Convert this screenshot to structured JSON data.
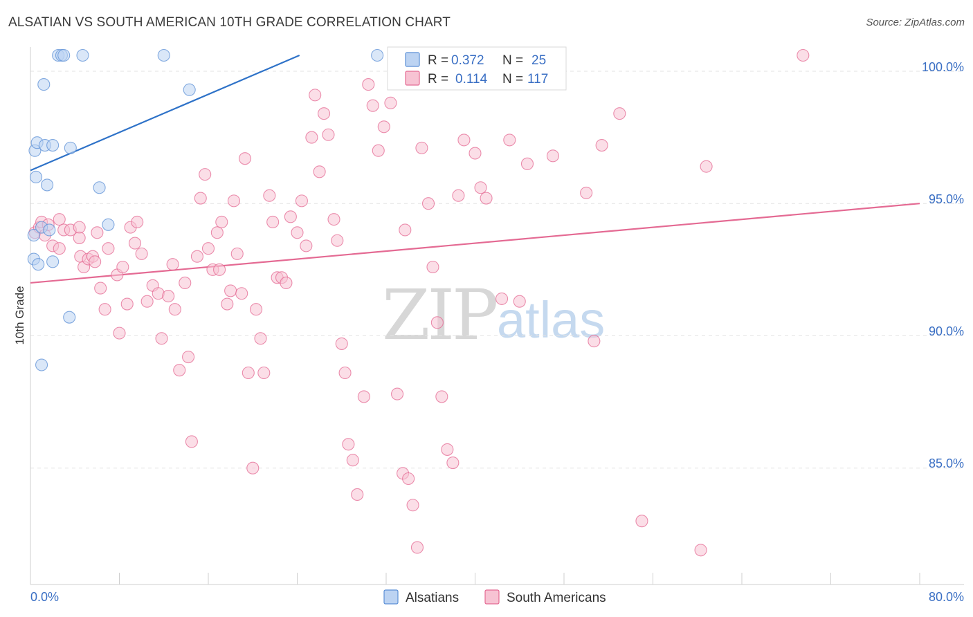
{
  "header": {
    "title": "ALSATIAN VS SOUTH AMERICAN 10TH GRADE CORRELATION CHART",
    "source": "Source: ZipAtlas.com"
  },
  "colors": {
    "alsatians": "#5b8fd6",
    "alsatians_fill": "#bcd3f2",
    "south_americans": "#e46a93",
    "south_americans_fill": "#f7c3d3",
    "axis_text": "#3a6fc4"
  },
  "watermark": {
    "zip": "ZIP",
    "atlas": "atlas"
  },
  "legend": {
    "rows": [
      {
        "r_label": "R =",
        "r_value": "0.372",
        "n_label": "N =",
        "n_value": "25"
      },
      {
        "r_label": "R =",
        "r_value": "0.114",
        "n_label": "N =",
        "n_value": "117"
      }
    ]
  },
  "bottom_legend": {
    "a": "Alsatians",
    "b": "South Americans"
  },
  "chart_data": {
    "type": "scatter",
    "title": "ALSATIAN VS SOUTH AMERICAN 10TH GRADE CORRELATION CHART",
    "xlabel": "",
    "ylabel": "10th Grade",
    "xlim": [
      0,
      80
    ],
    "ylim": [
      80.6,
      100.6
    ],
    "x_tick_labels": [
      "0.0%",
      "80.0%"
    ],
    "y_ticks": [
      85,
      90,
      95,
      100
    ],
    "y_tick_labels": [
      "85.0%",
      "90.0%",
      "95.0%",
      "100.0%"
    ],
    "grid": true,
    "series": [
      {
        "name": "Alsatians",
        "r": 0.372,
        "n": 25,
        "trend": {
          "x": [
            0,
            24.2
          ],
          "y": [
            96.25,
            100.6
          ]
        },
        "points": [
          [
            0.3,
            92.9
          ],
          [
            0.7,
            92.7
          ],
          [
            0.3,
            93.8
          ],
          [
            1.0,
            94.1
          ],
          [
            1.7,
            94.0
          ],
          [
            2.0,
            92.8
          ],
          [
            0.4,
            97.0
          ],
          [
            0.6,
            97.3
          ],
          [
            0.5,
            96.0
          ],
          [
            1.5,
            95.7
          ],
          [
            1.3,
            97.2
          ],
          [
            2.0,
            97.2
          ],
          [
            3.6,
            97.1
          ],
          [
            6.2,
            95.6
          ],
          [
            7.0,
            94.2
          ],
          [
            1.2,
            99.5
          ],
          [
            2.5,
            100.6
          ],
          [
            2.8,
            100.6
          ],
          [
            3.0,
            100.6
          ],
          [
            4.7,
            100.6
          ],
          [
            12.0,
            100.6
          ],
          [
            14.3,
            99.3
          ],
          [
            31.2,
            100.6
          ],
          [
            3.5,
            90.7
          ],
          [
            1.0,
            88.9
          ]
        ]
      },
      {
        "name": "South Americans",
        "r": 0.114,
        "n": 117,
        "trend": {
          "x": [
            0,
            80
          ],
          "y": [
            92.0,
            95.0
          ]
        },
        "points": [
          [
            0.4,
            93.9
          ],
          [
            0.8,
            94.1
          ],
          [
            1.0,
            94.3
          ],
          [
            1.3,
            93.8
          ],
          [
            1.6,
            94.2
          ],
          [
            2.0,
            93.4
          ],
          [
            2.6,
            93.3
          ],
          [
            2.6,
            94.4
          ],
          [
            3.0,
            94.0
          ],
          [
            3.6,
            94.0
          ],
          [
            4.4,
            94.1
          ],
          [
            4.4,
            93.7
          ],
          [
            4.5,
            93.0
          ],
          [
            4.8,
            92.6
          ],
          [
            5.2,
            92.9
          ],
          [
            5.6,
            93.0
          ],
          [
            5.8,
            92.8
          ],
          [
            6.0,
            93.9
          ],
          [
            6.3,
            91.8
          ],
          [
            6.7,
            91.0
          ],
          [
            7.0,
            93.3
          ],
          [
            7.8,
            92.3
          ],
          [
            8.0,
            90.1
          ],
          [
            8.3,
            92.6
          ],
          [
            8.7,
            91.2
          ],
          [
            9.0,
            94.1
          ],
          [
            9.4,
            93.5
          ],
          [
            9.6,
            94.3
          ],
          [
            10.0,
            93.1
          ],
          [
            10.5,
            91.3
          ],
          [
            11.0,
            91.9
          ],
          [
            11.5,
            91.6
          ],
          [
            11.8,
            89.9
          ],
          [
            12.4,
            91.5
          ],
          [
            12.8,
            92.7
          ],
          [
            13.0,
            91.0
          ],
          [
            13.4,
            88.7
          ],
          [
            13.9,
            92.0
          ],
          [
            14.2,
            89.2
          ],
          [
            14.5,
            86.0
          ],
          [
            15.0,
            93.0
          ],
          [
            15.3,
            95.2
          ],
          [
            15.7,
            96.1
          ],
          [
            16.0,
            93.3
          ],
          [
            16.4,
            92.5
          ],
          [
            16.8,
            93.9
          ],
          [
            17.2,
            94.3
          ],
          [
            17.7,
            91.2
          ],
          [
            18.0,
            91.7
          ],
          [
            18.3,
            95.1
          ],
          [
            18.6,
            93.1
          ],
          [
            19.0,
            91.6
          ],
          [
            19.3,
            96.7
          ],
          [
            19.6,
            88.6
          ],
          [
            20.0,
            85.0
          ],
          [
            20.3,
            91.0
          ],
          [
            20.7,
            89.9
          ],
          [
            21.0,
            88.6
          ],
          [
            21.5,
            95.3
          ],
          [
            21.8,
            94.3
          ],
          [
            22.2,
            92.2
          ],
          [
            22.6,
            92.2
          ],
          [
            23.0,
            92.0
          ],
          [
            23.4,
            94.5
          ],
          [
            24.0,
            93.9
          ],
          [
            24.4,
            95.1
          ],
          [
            24.8,
            93.4
          ],
          [
            25.3,
            97.5
          ],
          [
            25.6,
            99.1
          ],
          [
            26.0,
            96.2
          ],
          [
            26.4,
            98.4
          ],
          [
            26.8,
            97.6
          ],
          [
            27.3,
            94.4
          ],
          [
            27.6,
            93.6
          ],
          [
            28.0,
            89.7
          ],
          [
            28.3,
            88.6
          ],
          [
            28.6,
            85.9
          ],
          [
            29.0,
            85.3
          ],
          [
            29.4,
            84.0
          ],
          [
            30.0,
            87.7
          ],
          [
            30.4,
            99.5
          ],
          [
            30.8,
            98.7
          ],
          [
            31.3,
            97.0
          ],
          [
            31.8,
            97.9
          ],
          [
            32.4,
            98.8
          ],
          [
            33.0,
            87.8
          ],
          [
            33.5,
            84.8
          ],
          [
            34.0,
            84.6
          ],
          [
            34.4,
            83.6
          ],
          [
            34.8,
            82.0
          ],
          [
            35.2,
            97.1
          ],
          [
            35.8,
            95.0
          ],
          [
            36.2,
            92.6
          ],
          [
            36.6,
            90.5
          ],
          [
            37.0,
            87.7
          ],
          [
            37.5,
            85.7
          ],
          [
            38.0,
            85.2
          ],
          [
            38.5,
            95.3
          ],
          [
            39.0,
            97.4
          ],
          [
            40.0,
            96.9
          ],
          [
            40.5,
            95.6
          ],
          [
            41.0,
            95.2
          ],
          [
            42.4,
            91.4
          ],
          [
            43.1,
            97.4
          ],
          [
            44.0,
            91.3
          ],
          [
            44.7,
            96.5
          ],
          [
            47.0,
            96.8
          ],
          [
            50.0,
            95.4
          ],
          [
            50.7,
            89.8
          ],
          [
            51.4,
            97.2
          ],
          [
            53.0,
            98.4
          ],
          [
            55.0,
            83.0
          ],
          [
            60.3,
            81.9
          ],
          [
            60.8,
            96.4
          ],
          [
            69.5,
            100.6
          ],
          [
            17.0,
            92.5
          ],
          [
            33.7,
            94.0
          ]
        ]
      }
    ]
  }
}
